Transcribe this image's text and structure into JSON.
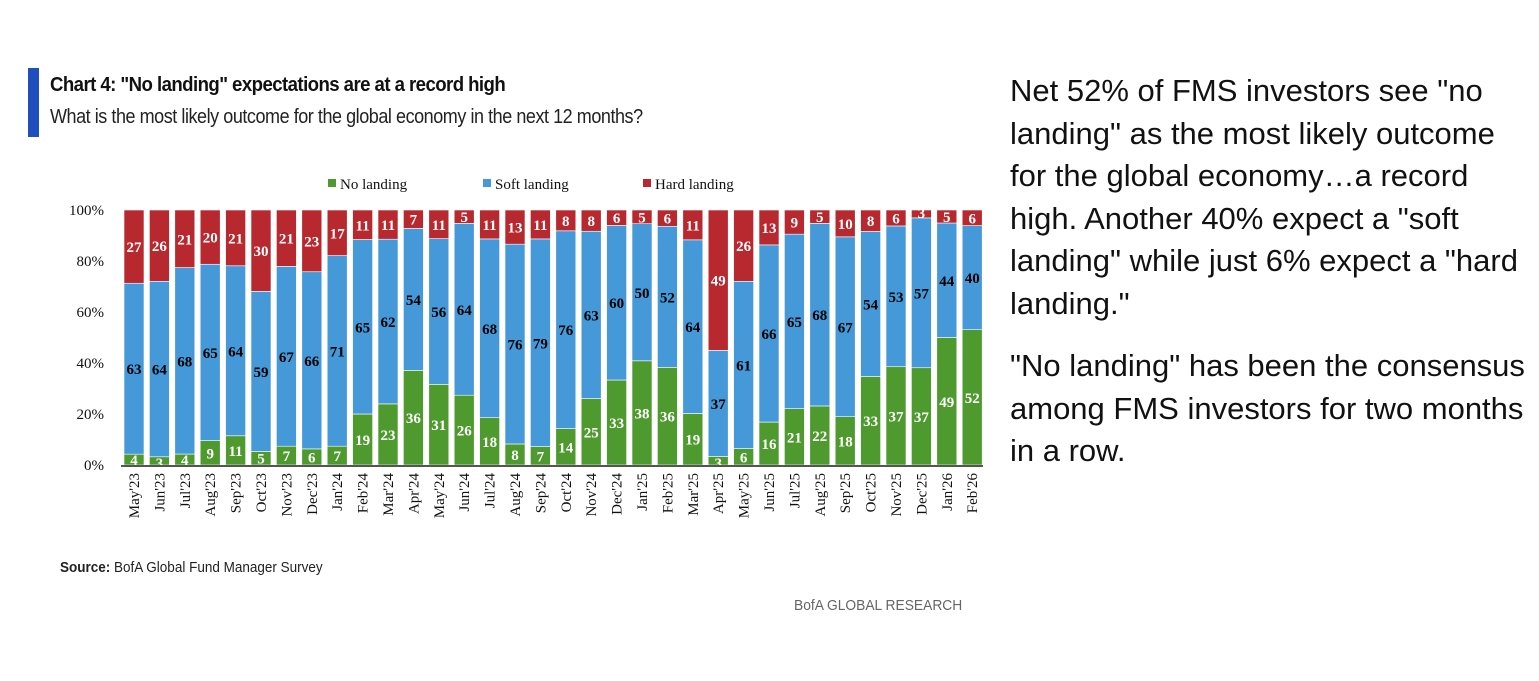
{
  "header": {
    "title": "Chart 4: \"No landing\" expectations are at a record high",
    "subtitle": "What is the most likely outcome for the global economy in the next 12 months?",
    "accent_color": "#1f4fbf"
  },
  "source": {
    "label": "Source:",
    "text": "BofA Global Fund Manager Survey"
  },
  "footer": "BofA GLOBAL RESEARCH",
  "commentary": [
    "Net 52% of FMS investors see \"no landing\" as the most likely outcome for the global economy…a record high. Another 40% expect a \"soft landing\" while just 6% expect a \"hard landing.\"",
    "\"No landing\" has been the consensus among FMS investors for two months in a row."
  ],
  "chart_data": {
    "type": "bar",
    "stacked": true,
    "normalized": true,
    "title": "Chart 4: \"No landing\" expectations are at a record high",
    "subtitle": "What is the most likely outcome for the global economy in the next 12 months?",
    "ylim": [
      0,
      100
    ],
    "yticks": [
      "0%",
      "20%",
      "40%",
      "60%",
      "80%",
      "100%"
    ],
    "legend_position": "top",
    "grid": false,
    "categories": [
      "May'23",
      "Jun'23",
      "Jul'23",
      "Aug'23",
      "Sep'23",
      "Oct'23",
      "Nov'23",
      "Dec'23",
      "Jan'24",
      "Feb'24",
      "Mar'24",
      "Apr'24",
      "May'24",
      "Jun'24",
      "Jul'24",
      "Aug'24",
      "Sep'24",
      "Oct'24",
      "Nov'24",
      "Dec'24",
      "Jan'25",
      "Feb'25",
      "Mar'25",
      "Apr'25",
      "May'25",
      "Jun'25",
      "Jul'25",
      "Aug'25",
      "Sep'25",
      "Oct'25",
      "Nov'25",
      "Dec'25",
      "Jan'26",
      "Feb'26"
    ],
    "series": [
      {
        "name": "No landing",
        "color": "#4f9a2e",
        "label_color": "#ffffff",
        "values": [
          4,
          3,
          4,
          9,
          11,
          5,
          7,
          6,
          7,
          19,
          23,
          36,
          31,
          26,
          18,
          8,
          7,
          14,
          25,
          33,
          38,
          36,
          19,
          3,
          6,
          16,
          21,
          22,
          18,
          33,
          37,
          37,
          49,
          52
        ]
      },
      {
        "name": "Soft landing",
        "color": "#4599d8",
        "label_color": "#000000",
        "values": [
          63,
          64,
          68,
          65,
          64,
          59,
          67,
          66,
          71,
          65,
          62,
          54,
          56,
          64,
          68,
          76,
          79,
          76,
          63,
          60,
          50,
          52,
          64,
          37,
          61,
          66,
          65,
          68,
          67,
          54,
          53,
          57,
          44,
          40
        ]
      },
      {
        "name": "Hard landing",
        "color": "#b8282f",
        "label_color": "#ffffff",
        "values": [
          27,
          26,
          21,
          20,
          21,
          30,
          21,
          23,
          17,
          11,
          11,
          7,
          11,
          5,
          11,
          13,
          11,
          8,
          8,
          6,
          5,
          6,
          11,
          49,
          26,
          13,
          9,
          5,
          10,
          8,
          6,
          3,
          5,
          6
        ]
      }
    ]
  }
}
